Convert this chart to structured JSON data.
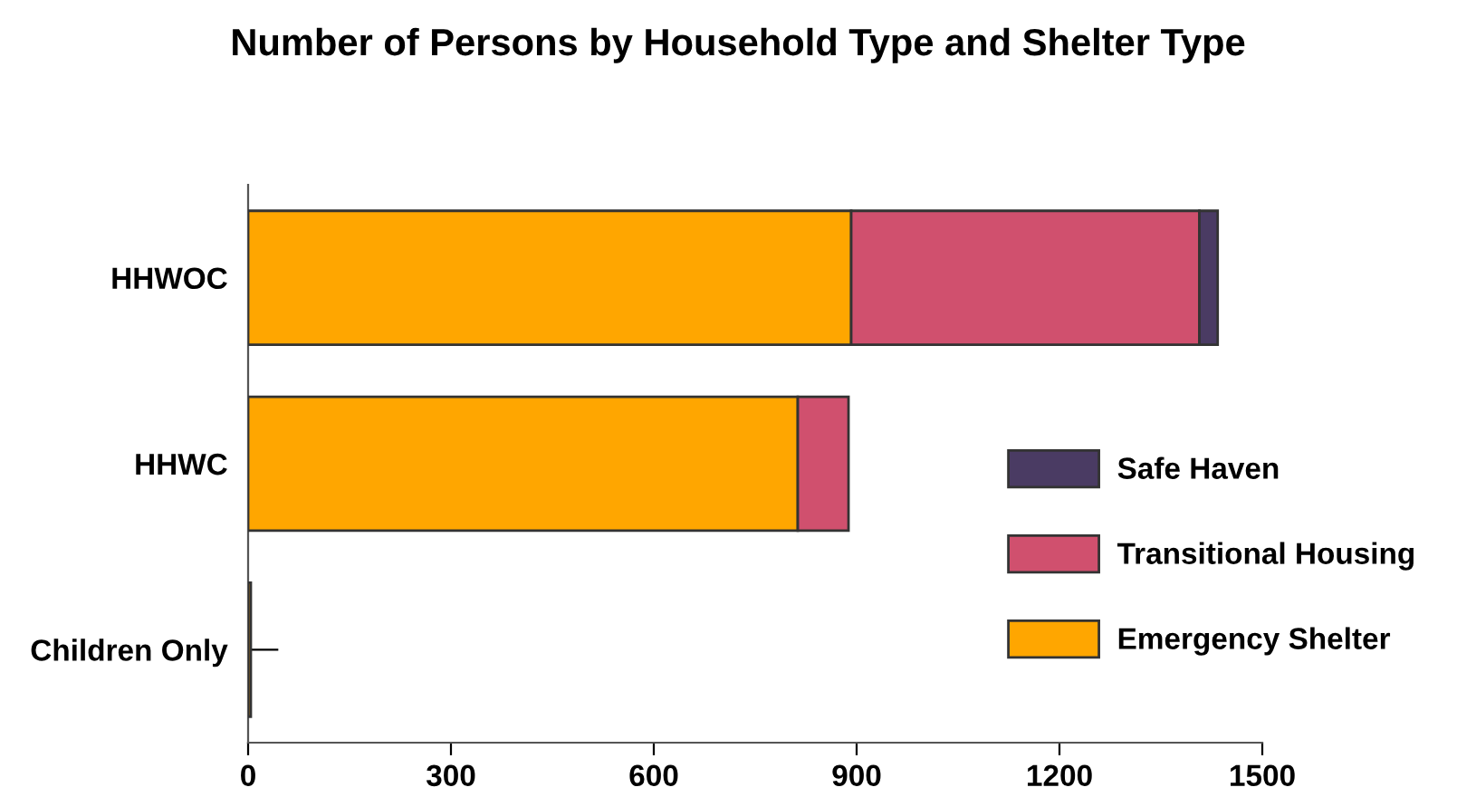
{
  "chart_data": {
    "type": "bar",
    "orientation": "horizontal",
    "stacked": true,
    "title": "Number of Persons by Household Type and Shelter Type",
    "categories": [
      "HHWOC",
      "HHWC",
      "Children Only"
    ],
    "series": [
      {
        "name": "Emergency Shelter",
        "color": "#ffa600",
        "values": [
          892,
          813,
          4
        ]
      },
      {
        "name": "Transitional Housing",
        "color": "#d0506e",
        "values": [
          515,
          75,
          0
        ]
      },
      {
        "name": "Safe Haven",
        "color": "#4a3b63",
        "values": [
          27,
          0,
          0
        ]
      }
    ],
    "xlim": [
      0,
      1500
    ],
    "xticks": [
      0,
      300,
      600,
      900,
      1200,
      1500
    ],
    "grid": false,
    "legend": "right"
  }
}
